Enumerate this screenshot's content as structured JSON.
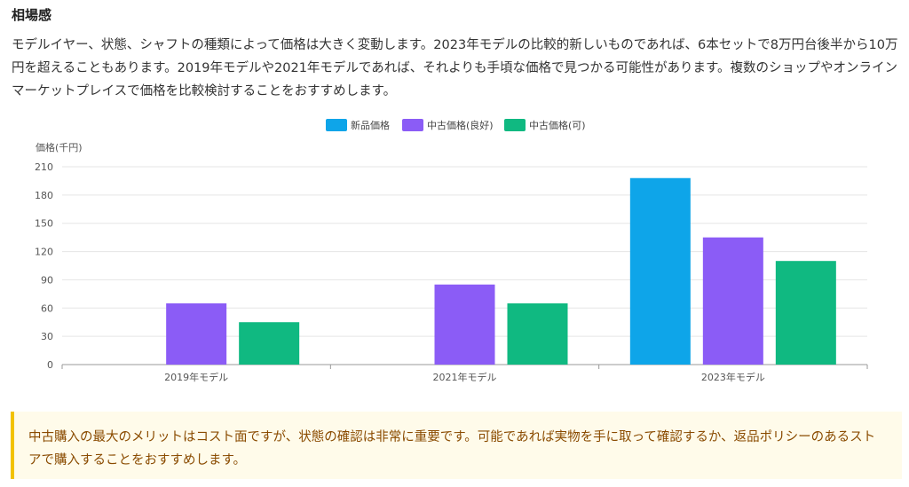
{
  "section": {
    "title": "相場感",
    "intro": "モデルイヤー、状態、シャフトの種類によって価格は大きく変動します。2023年モデルの比較的新しいものであれば、6本セットで8万円台後半から10万円を超えることもあります。2019年モデルや2021年モデルであれば、それよりも手頃な価格で見つかる可能性があります。複数のショップやオンラインマーケットプレイスで価格を比較検討することをおすすめします。"
  },
  "chart_data": {
    "type": "bar",
    "title": "",
    "xlabel": "",
    "ylabel": "価格(千円)",
    "categories": [
      "2019年モデル",
      "2021年モデル",
      "2023年モデル"
    ],
    "series": [
      {
        "name": "新品価格",
        "values": [
          null,
          null,
          198
        ],
        "color": "#0ea5e9"
      },
      {
        "name": "中古価格(良好)",
        "values": [
          65,
          85,
          135
        ],
        "color": "#8b5cf6"
      },
      {
        "name": "中古価格(可)",
        "values": [
          45,
          65,
          110
        ],
        "color": "#10b981"
      }
    ],
    "ylim": [
      0,
      210
    ],
    "yticks": [
      0,
      30,
      60,
      90,
      120,
      150,
      180,
      210
    ],
    "grid": true,
    "legend": "top-center"
  },
  "note": {
    "text": "中古購入の最大のメリットはコスト面ですが、状態の確認は非常に重要です。可能であれば実物を手に取って確認するか、返品ポリシーのあるストアで購入することをおすすめします。",
    "accent_color": "#f2c200",
    "background_color": "#fffbea"
  }
}
